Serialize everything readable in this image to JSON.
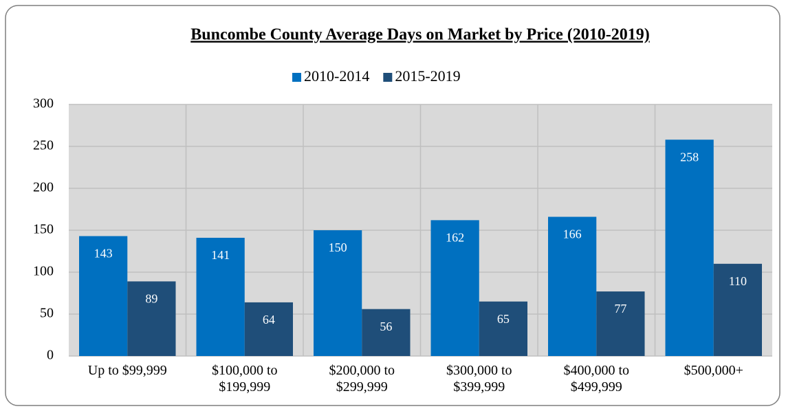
{
  "chart_data": {
    "type": "bar",
    "title": "Buncombe County Average Days on Market by Price (2010-2019)",
    "categories": [
      "Up to $99,999",
      "$100,000 to $199,999",
      "$200,000 to $299,999",
      "$300,000 to $399,999",
      "$400,000 to $499,999",
      "$500,000+"
    ],
    "series": [
      {
        "name": "2010-2014",
        "color": "#0070c0",
        "values": [
          143,
          141,
          150,
          162,
          166,
          258
        ]
      },
      {
        "name": "2015-2019",
        "color": "#1f4e79",
        "values": [
          89,
          64,
          56,
          65,
          77,
          110
        ]
      }
    ],
    "ylim": [
      0,
      300
    ],
    "yticks": [
      0,
      50,
      100,
      150,
      200,
      250,
      300
    ],
    "grid": true,
    "legend": "top"
  }
}
